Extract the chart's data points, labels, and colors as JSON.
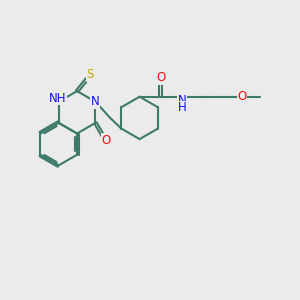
{
  "bg_color": "#ebebeb",
  "bond_color": "#3d7a6a",
  "bond_width": 1.5,
  "atom_colors": {
    "N": "#1010ee",
    "O": "#ee1010",
    "S": "#ccaa00",
    "C": "#3d7a6a"
  },
  "font_size": 8.5,
  "figsize": [
    3.0,
    3.0
  ],
  "dpi": 100
}
